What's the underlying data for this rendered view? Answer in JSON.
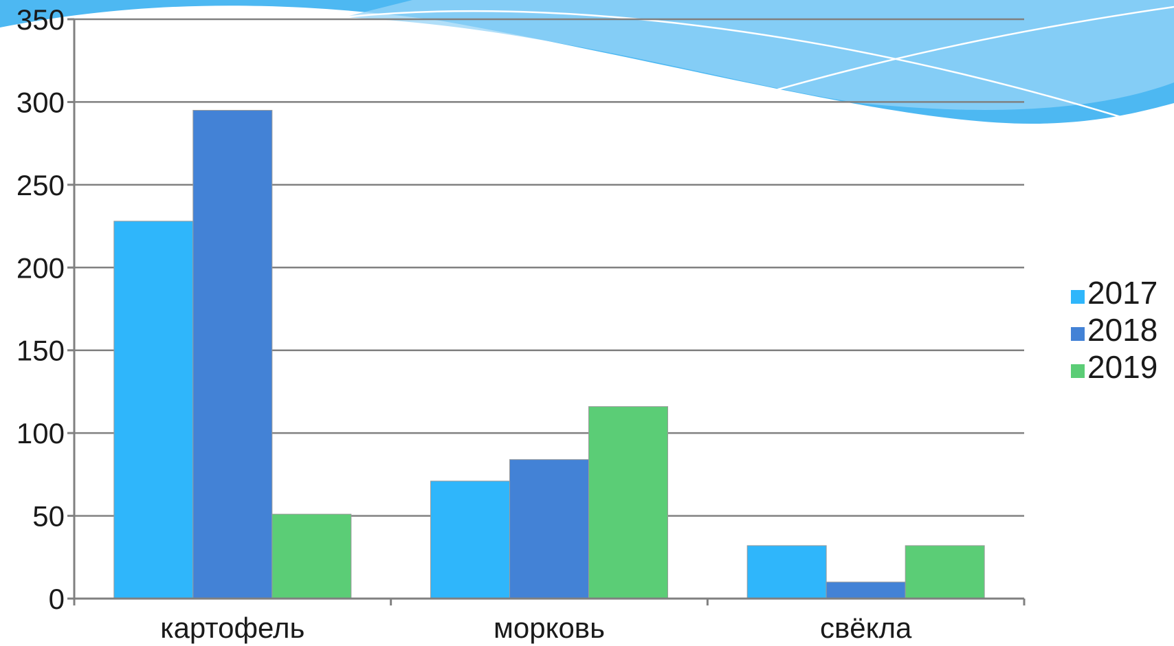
{
  "chart_data": {
    "type": "bar",
    "categories": [
      "картофель",
      "морковь",
      "свёкла"
    ],
    "series": [
      {
        "name": "2017",
        "values": [
          228,
          71,
          32
        ],
        "color": "#2fb6fb"
      },
      {
        "name": "2018",
        "values": [
          295,
          84,
          10
        ],
        "color": "#4382d6"
      },
      {
        "name": "2019",
        "values": [
          51,
          116,
          32
        ],
        "color": "#5bcd76"
      }
    ],
    "y_ticks": [
      "0",
      "50",
      "100",
      "150",
      "200",
      "250",
      "300",
      "350"
    ],
    "ylim": [
      0,
      350
    ],
    "grid": true,
    "legend_position": "right",
    "title": "",
    "xlabel": "",
    "ylabel": ""
  },
  "colors": {
    "wave_dark": "#4db8f2",
    "wave_light": "#97d4f7",
    "grid": "#808080",
    "axis": "#808080"
  }
}
